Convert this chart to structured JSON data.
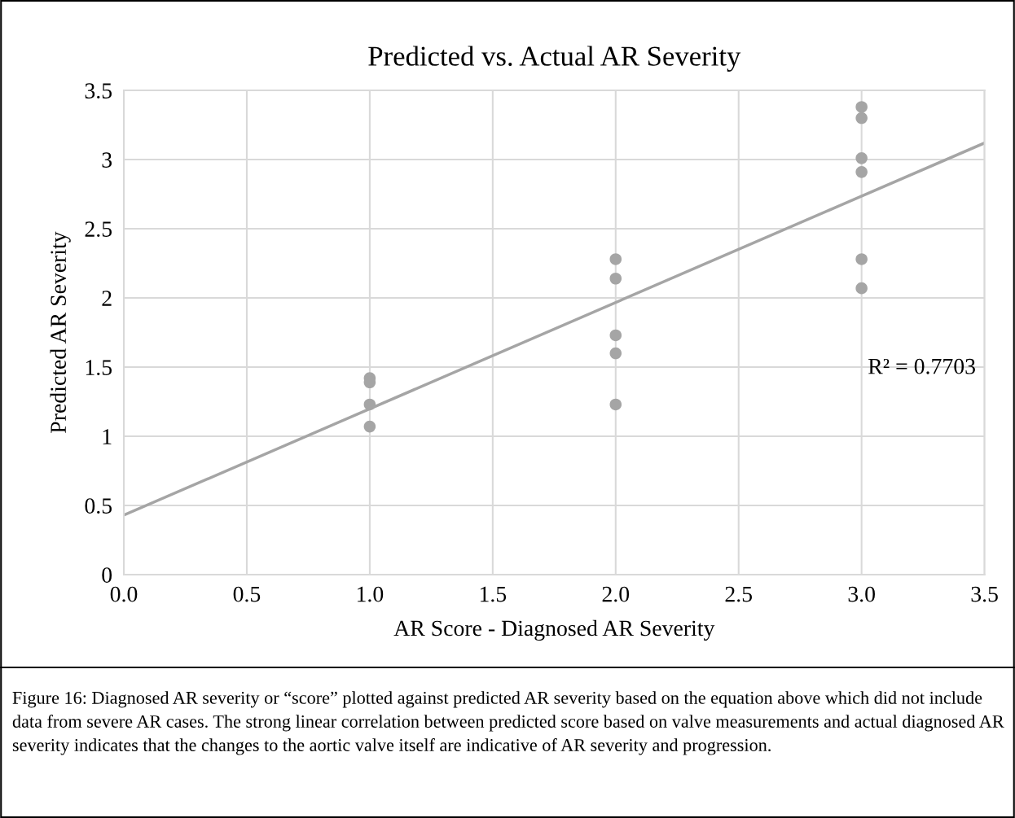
{
  "chart_data": {
    "type": "scatter",
    "title": "Predicted vs. Actual AR Severity",
    "xlabel": "AR Score - Diagnosed AR Severity",
    "ylabel": "Predicted AR Severity",
    "series": [
      {
        "color": "#a5a5a5",
        "x": [
          1,
          1,
          1,
          1,
          2,
          2,
          2,
          2,
          2,
          3,
          3,
          3,
          3,
          3,
          3
        ],
        "values": [
          1.42,
          1.39,
          1.23,
          1.07,
          2.28,
          2.14,
          1.73,
          1.6,
          1.23,
          3.38,
          3.3,
          3.01,
          2.91,
          2.28,
          2.07
        ],
        "marker": "circle"
      },
      {
        "type": "line",
        "color": "#a5a5a5",
        "x": [
          0,
          3.5
        ],
        "values": [
          0.43,
          3.12
        ],
        "marker": "none",
        "line_style": "solid"
      }
    ],
    "xlim": [
      0,
      3.5
    ],
    "xticks": [
      {
        "value": 0,
        "label": "0.0"
      },
      0.5,
      {
        "value": 1,
        "label": "1.0"
      },
      1.5,
      {
        "value": 2,
        "label": "2.0"
      },
      2.5,
      {
        "value": 3,
        "label": "3.0"
      },
      3.5
    ],
    "ylim": [
      0,
      3.5
    ],
    "yticks": [
      0,
      0.5,
      1,
      1.5,
      2,
      2.5,
      3,
      3.5
    ],
    "grid": true,
    "legend": false,
    "annotations": [
      "R² = 0.7703",
      "Figure 16: Diagnosed AR severity or “score” plotted against predicted AR severity based on the equation above which did not include data from severe AR cases. The strong linear correlation between predicted score based on valve measurements and actual diagnosed AR severity indicates that the changes to the aortic valve itself are indicative of AR severity and progression."
    ]
  }
}
